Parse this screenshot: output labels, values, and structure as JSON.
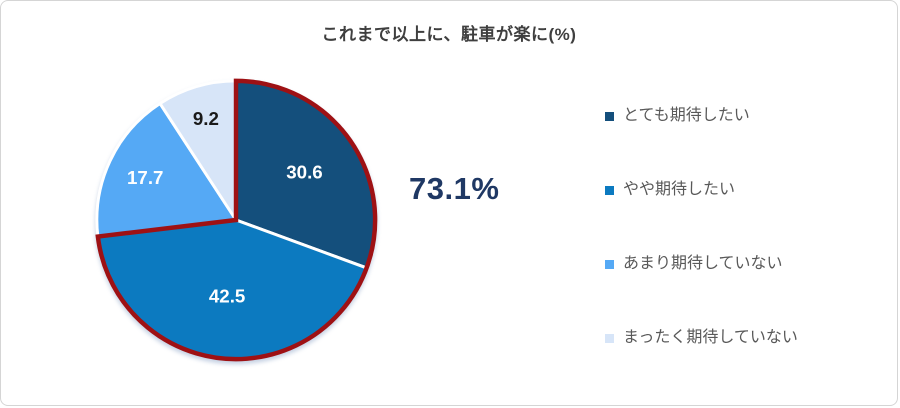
{
  "title": "これまで以上に、駐車が楽に(%)",
  "callout": {
    "text": "73.1%",
    "color": "#1f3864"
  },
  "chart_data": {
    "type": "pie",
    "title": "これまで以上に、駐車が楽に(%)",
    "unit": "%",
    "start_angle_deg": 0,
    "direction": "clockwise",
    "legend_position": "right",
    "slices": [
      {
        "label": "とても期待したい",
        "value": 30.6,
        "color": "#144f7c",
        "value_color": "#ffffff",
        "label_r": 0.6
      },
      {
        "label": "やや期待したい",
        "value": 42.5,
        "color": "#0c7ac0",
        "value_color": "#ffffff",
        "label_r": 0.55
      },
      {
        "label": "あまり期待していない",
        "value": 17.7,
        "color": "#55a9f5",
        "value_color": "#ffffff",
        "label_r": 0.72
      },
      {
        "label": "まったく期待していない",
        "value": 9.2,
        "color": "#d7e5f8",
        "value_color": "#1a1a1a",
        "label_r": 0.76
      }
    ],
    "highlight": {
      "slices": [
        0,
        1
      ],
      "total": 73.1,
      "total_label": "73.1%",
      "outline_color": "#9e1114"
    }
  }
}
